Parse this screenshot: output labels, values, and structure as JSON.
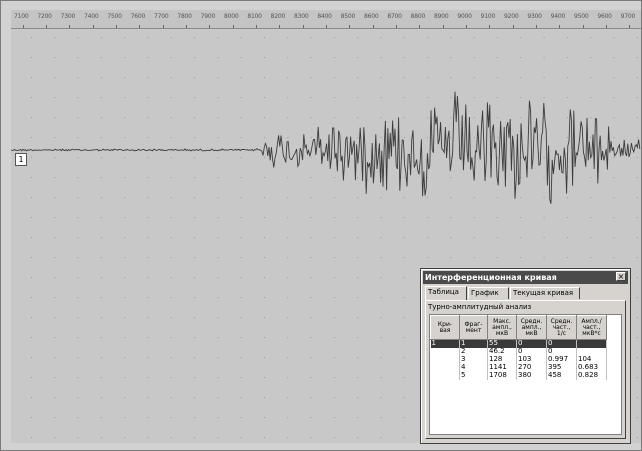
{
  "ruler": {
    "labels": [
      "7100",
      "7200",
      "7300",
      "7400",
      "7500",
      "7600",
      "7700",
      "7800",
      "7900",
      "8000",
      "8100",
      "8200",
      "8300",
      "8400",
      "8500",
      "8600",
      "8700",
      "8800",
      "8900",
      "9000",
      "9100",
      "9200",
      "9300",
      "9400",
      "9500",
      "9600",
      "9700"
    ]
  },
  "trace": {
    "label": "1"
  },
  "dialog": {
    "title": "Интерференционная кривая",
    "close_glyph": "×",
    "tabs": [
      "Таблица",
      "График",
      "Текущая кривая"
    ],
    "active_tab": 0,
    "section_title": "Турно-амплитудный анализ",
    "columns": [
      "Кри-\nвая",
      "Фраг-\nмент",
      "Макс.\nампл.,\nмкВ",
      "Средн.\nампл.,\nмкВ",
      "Средн.\nчаст.,\n1/с",
      "Ампл./\nчаст.,\nмкВ*с"
    ],
    "rows": [
      [
        "1",
        "1",
        "55",
        "0",
        "0",
        ""
      ],
      [
        "",
        "2",
        "46.2",
        "0",
        "0",
        ""
      ],
      [
        "",
        "3",
        "128",
        "103",
        "0.997",
        "104"
      ],
      [
        "",
        "4",
        "1141",
        "270",
        "395",
        "0.683"
      ],
      [
        "",
        "5",
        "1708",
        "380",
        "458",
        "0.828"
      ]
    ],
    "selected_row": 0
  },
  "colors": {
    "background": "#d2d2d2",
    "signal": "#3c3c3c",
    "selection": "#3a3a3a",
    "titlebar": "#4a4a4a"
  }
}
